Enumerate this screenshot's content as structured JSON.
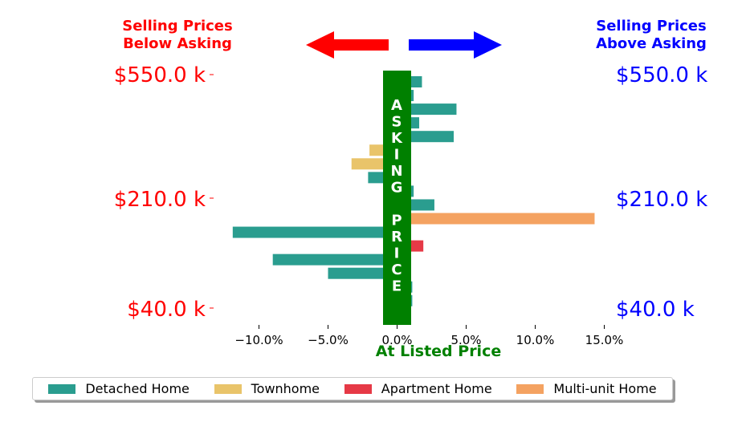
{
  "chart_data": {
    "type": "bar",
    "orientation": "horizontal",
    "header_left": [
      "Selling Prices",
      "Below Asking"
    ],
    "header_right": [
      "Selling Prices",
      "Above Asking"
    ],
    "price_ticks": [
      "$550.0 k",
      "$210.0 k",
      "$40.0 k"
    ],
    "x_tick_labels": [
      "−10.0%",
      "−5.0%",
      "0.0%",
      "5.0%",
      "10.0%",
      "15.0%"
    ],
    "xlabel": "At Listed Price",
    "center_label": "ASKING PRICE",
    "xlim": [
      -12.5,
      16
    ],
    "bars": [
      {
        "category": "Detached Home",
        "value": 1.8
      },
      {
        "category": "Detached Home",
        "value": 1.2
      },
      {
        "category": "Detached Home",
        "value": 4.3
      },
      {
        "category": "Detached Home",
        "value": 1.6
      },
      {
        "category": "Detached Home",
        "value": 4.1
      },
      {
        "category": "Townhome",
        "value": -2.0
      },
      {
        "category": "Townhome",
        "value": -3.3
      },
      {
        "category": "Detached Home",
        "value": -2.1
      },
      {
        "category": "Detached Home",
        "value": 1.2
      },
      {
        "category": "Detached Home",
        "value": 2.7
      },
      {
        "category": "Multi-unit Home",
        "value": 14.3
      },
      {
        "category": "Detached Home",
        "value": -11.9
      },
      {
        "category": "Apartment Home",
        "value": 1.9
      },
      {
        "category": "Detached Home",
        "value": -9.0
      },
      {
        "category": "Detached Home",
        "value": -5.0
      },
      {
        "category": "Detached Home",
        "value": 1.1
      },
      {
        "category": "Detached Home",
        "value": 1.1
      }
    ],
    "legend": [
      {
        "label": "Detached Home",
        "color": "#2a9d8f"
      },
      {
        "label": "Townhome",
        "color": "#e9c46a"
      },
      {
        "label": "Apartment Home",
        "color": "#e63946"
      },
      {
        "label": "Multi-unit Home",
        "color": "#f4a261"
      }
    ],
    "colors": {
      "below": "#ff0000",
      "above": "#0000ff",
      "asking": "#008000"
    }
  }
}
